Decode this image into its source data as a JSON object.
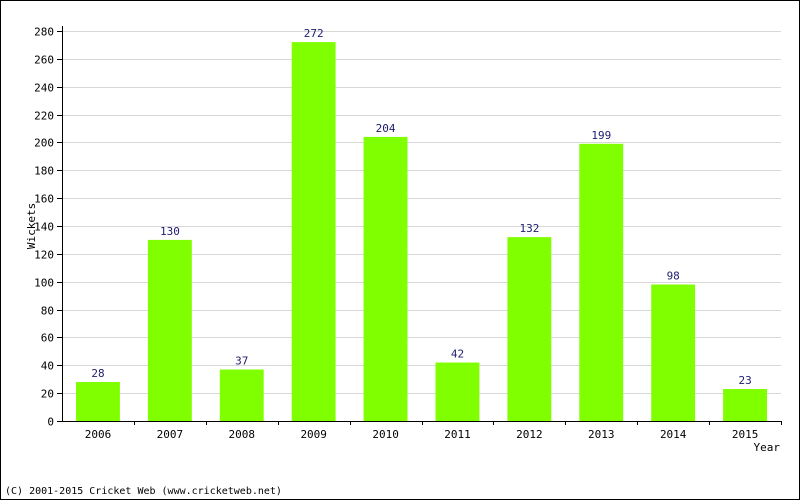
{
  "chart_data": {
    "type": "bar",
    "categories": [
      "2006",
      "2007",
      "2008",
      "2009",
      "2010",
      "2011",
      "2012",
      "2013",
      "2014",
      "2015"
    ],
    "values": [
      28,
      130,
      37,
      272,
      204,
      42,
      132,
      199,
      98,
      23
    ],
    "title": "",
    "xlabel": "Year",
    "ylabel": "Wickets",
    "ylim": [
      0,
      280
    ],
    "yticks": [
      0,
      20,
      40,
      60,
      80,
      100,
      120,
      140,
      160,
      180,
      200,
      220,
      240,
      260,
      280
    ],
    "grid": true,
    "data_labels": true,
    "colors": {
      "bar": "#80ff00",
      "grid": "#d8d8d8",
      "label": "#1c1c6e",
      "axis": "#000000"
    }
  },
  "footer": {
    "copyright": "(C) 2001-2015 Cricket Web (www.cricketweb.net)"
  }
}
